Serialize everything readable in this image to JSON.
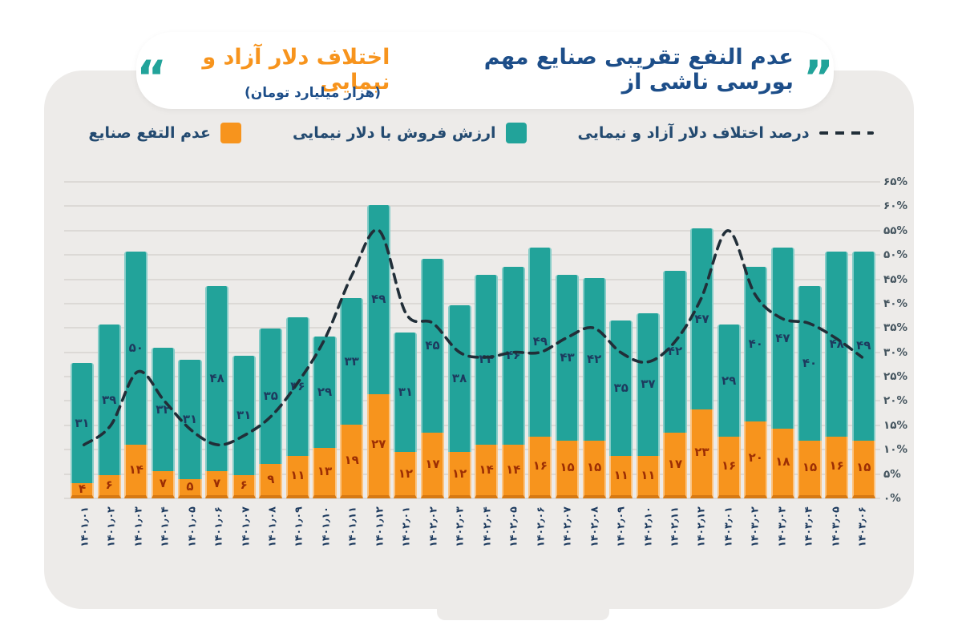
{
  "title": {
    "text_main": "عدم النفع تقریبی صنایع مهم بورسی ناشی از",
    "text_highlight": "اختلاف دلار آزاد و نیمایی",
    "subtitle": "(هزار میلیارد تومان)"
  },
  "icons": {
    "quote_right": "”",
    "quote_left": "“"
  },
  "legend": [
    {
      "label": "درصد اختلاف دلار آزاد و نیمایی",
      "marker": "dashed-line"
    },
    {
      "label": "ارزش فروش با دلار نیمایی",
      "marker": "teal-square"
    },
    {
      "label": "عدم التفع صنایع",
      "marker": "orange-square"
    }
  ],
  "colors": {
    "teal": "#22a39a",
    "orange": "#f7941d",
    "title_navy": "#1d4e89",
    "title_orange": "#f7941d",
    "quote_teal": "#22a39a",
    "bar_label_teal_segments": "#1d3a5e",
    "bar_label_orange_segments": "#9c2e04",
    "trend_line": "#212e38",
    "card_background": "#edebe9",
    "gridline": "#dcd9d6"
  },
  "chart_data": {
    "type": "bar",
    "subtype": "stacked-bars-with-percent-line",
    "title": "عدم النفع تقریبی صنایع مهم بورسی ناشی از اختلاف دلار آزاد و نیمایی",
    "subtitle": "(هزار میلیارد تومان)",
    "categories": [
      "۱۴۰۱٫۰۱",
      "۱۴۰۱٫۰۲",
      "۱۴۰۱٫۰۳",
      "۱۴۰۱٫۰۴",
      "۱۴۰۱٫۰۵",
      "۱۴۰۱٫۰۶",
      "۱۴۰۱٫۰۷",
      "۱۴۰۱٫۰۸",
      "۱۴۰۱٫۰۹",
      "۱۴۰۱٫۱۰",
      "۱۴۰۱٫۱۱",
      "۱۴۰۱٫۱۲",
      "۱۴۰۲٫۰۱",
      "۱۴۰۲٫۰۲",
      "۱۴۰۲٫۰۳",
      "۱۴۰۲٫۰۴",
      "۱۴۰۲٫۰۵",
      "۱۴۰۲٫۰۶",
      "۱۴۰۲٫۰۷",
      "۱۴۰۲٫۰۸",
      "۱۴۰۲٫۰۹",
      "۱۴۰۲٫۱۰",
      "۱۴۰۲٫۱۱",
      "۱۴۰۲٫۱۲",
      "۱۴۰۳٫۰۱",
      "۱۴۰۳٫۰۲",
      "۱۴۰۳٫۰۳",
      "۱۴۰۳٫۰۴",
      "۱۴۰۳٫۰۵",
      "۱۴۰۳٫۰۶"
    ],
    "series": [
      {
        "name": "عدم التفع صنایع",
        "type": "bar",
        "stack": "total",
        "color": "#f7941d",
        "values": [
          4,
          6,
          14,
          7,
          5,
          7,
          6,
          9,
          11,
          13,
          19,
          27,
          12,
          17,
          12,
          14,
          14,
          16,
          15,
          15,
          11,
          11,
          17,
          23,
          16,
          20,
          18,
          15,
          16,
          15
        ]
      },
      {
        "name": "ارزش فروش با دلار نیمایی",
        "type": "bar",
        "stack": "total",
        "color": "#22a39a",
        "values": [
          31,
          39,
          50,
          32,
          31,
          48,
          31,
          35,
          36,
          29,
          33,
          49,
          31,
          45,
          38,
          44,
          46,
          49,
          43,
          42,
          35,
          37,
          42,
          47,
          29,
          40,
          47,
          40,
          48,
          49
        ]
      },
      {
        "name": "درصد اختلاف دلار آزاد و نیمایی",
        "type": "line",
        "style": "dashed",
        "color": "#212e38",
        "axis": "percent",
        "values": [
          11,
          15,
          26,
          20,
          14,
          11,
          13,
          17,
          24,
          33,
          46,
          55,
          38,
          36,
          30,
          29,
          30,
          30,
          33,
          35,
          30,
          28,
          32,
          41,
          55,
          42,
          37,
          36,
          33,
          29
        ]
      }
    ],
    "percent_axis": {
      "side": "right",
      "min": 0,
      "max": 65,
      "step": 5,
      "tick_suffix": "%",
      "tick_digits": "persian"
    },
    "bar_axis_max_equivalent": 82,
    "grid": true,
    "legend_position": "top"
  }
}
